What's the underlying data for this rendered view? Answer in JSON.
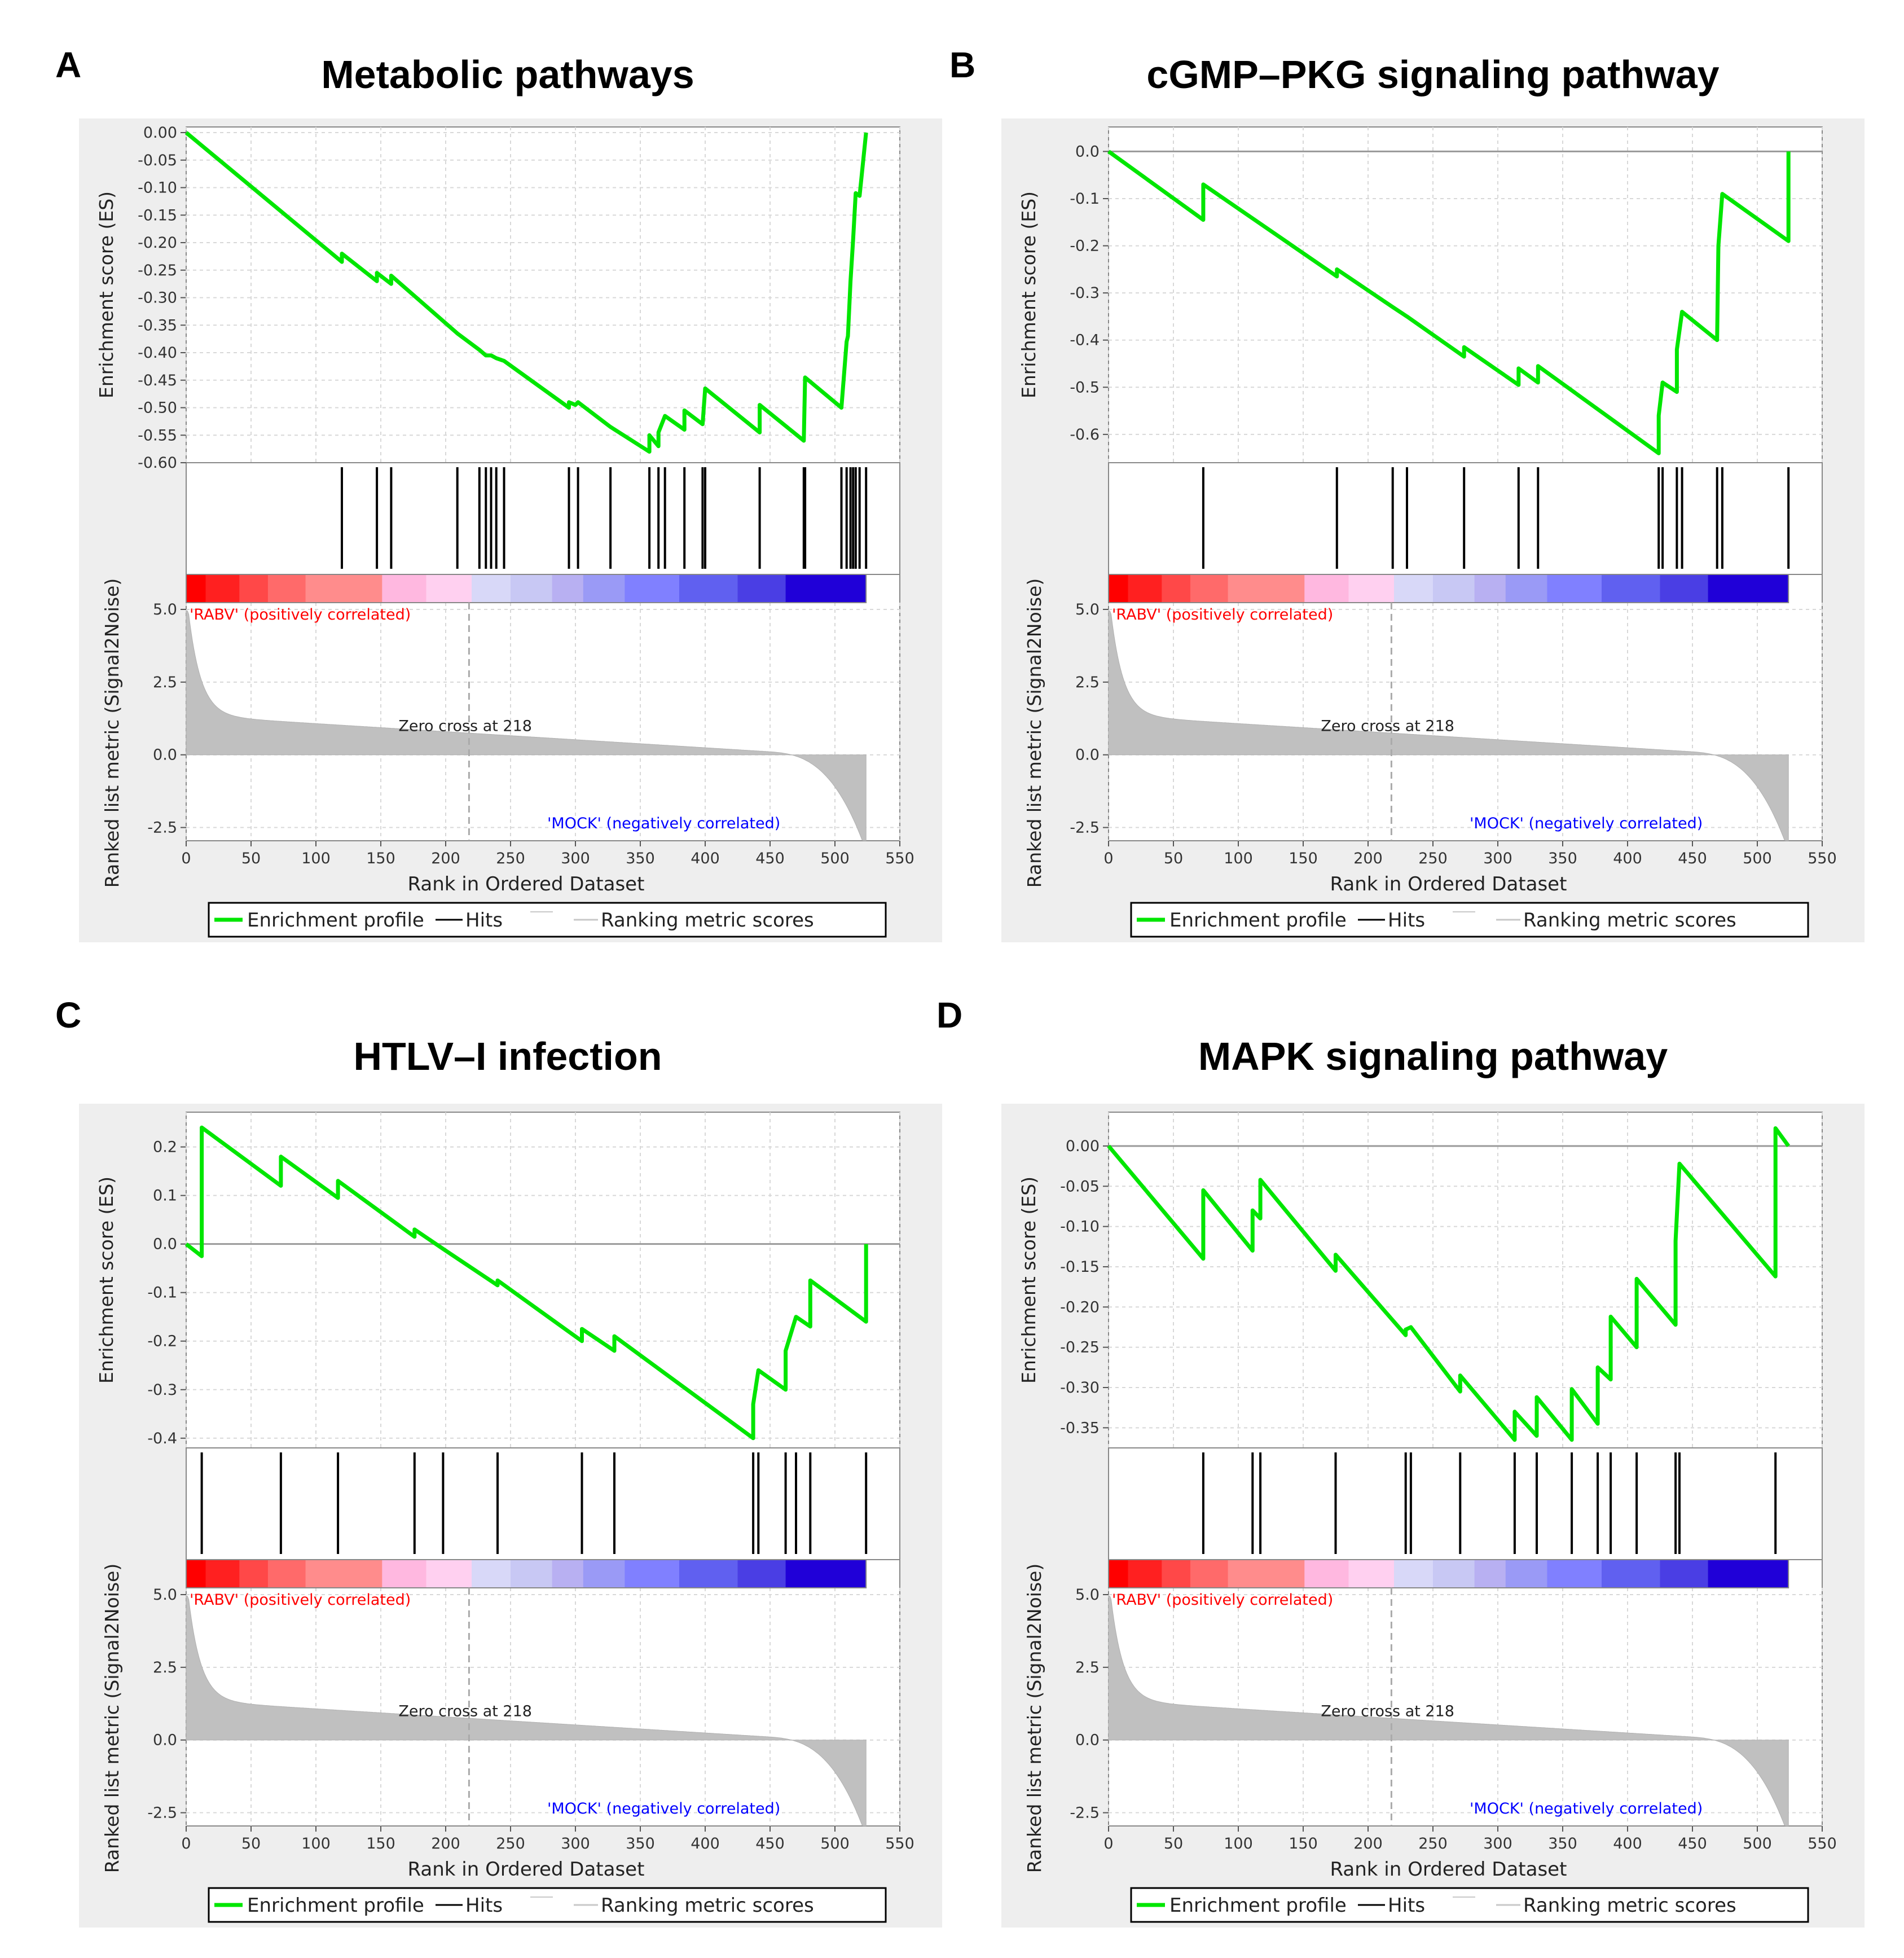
{
  "figure": {
    "common": {
      "es_ylabel": "Enrichment score (ES)",
      "metric_ylabel": "Ranked list metric (Signal2Noise)",
      "xlabel": "Rank in Ordered Dataset",
      "x_ticks": [
        0,
        50,
        100,
        150,
        200,
        250,
        300,
        350,
        400,
        450,
        500,
        550
      ],
      "metric_ticks": [
        "5.0",
        "2.5",
        "0.0",
        "-2.5"
      ],
      "pos_label": "'RABV' (positively correlated)",
      "neg_label": "'MOCK' (negatively correlated)",
      "zero_cross": "Zero cross at 218",
      "legend": {
        "profile": "Enrichment profile",
        "hits": "Hits",
        "metric": "Ranking metric scores"
      },
      "colors": {
        "profile": "#00e600",
        "pos": "#ff0000",
        "neg": "#0000ff",
        "bars": "#c0c0c0",
        "panel_bg": "#eeeeee"
      }
    }
  },
  "chart_data": [
    {
      "type": "line",
      "letter": "A",
      "title": "Metabolic pathways",
      "y_ticks": [
        "0.00",
        "-0.05",
        "-0.10",
        "-0.15",
        "-0.20",
        "-0.25",
        "-0.30",
        "-0.35",
        "-0.40",
        "-0.45",
        "-0.50",
        "-0.55",
        "-0.60"
      ],
      "ylim": [
        -0.6,
        0.0
      ],
      "xlim": [
        0,
        550
      ],
      "n": 524,
      "hits": [
        120,
        147,
        158,
        209,
        226,
        231,
        235,
        239,
        245,
        295,
        302,
        327,
        357,
        364,
        369,
        384,
        398,
        400,
        442,
        476,
        477,
        505,
        509,
        512,
        514,
        516,
        519,
        524
      ],
      "profile": [
        [
          0,
          0.0
        ],
        [
          120,
          -0.235
        ],
        [
          120,
          -0.22
        ],
        [
          147,
          -0.27
        ],
        [
          147,
          -0.255
        ],
        [
          158,
          -0.275
        ],
        [
          158,
          -0.26
        ],
        [
          209,
          -0.365
        ],
        [
          226,
          -0.395
        ],
        [
          231,
          -0.405
        ],
        [
          235,
          -0.405
        ],
        [
          239,
          -0.41
        ],
        [
          245,
          -0.415
        ],
        [
          295,
          -0.5
        ],
        [
          295,
          -0.49
        ],
        [
          300,
          -0.495
        ],
        [
          302,
          -0.49
        ],
        [
          327,
          -0.535
        ],
        [
          357,
          -0.58
        ],
        [
          357,
          -0.55
        ],
        [
          364,
          -0.57
        ],
        [
          364,
          -0.545
        ],
        [
          369,
          -0.515
        ],
        [
          384,
          -0.54
        ],
        [
          384,
          -0.505
        ],
        [
          398,
          -0.53
        ],
        [
          400,
          -0.465
        ],
        [
          442,
          -0.545
        ],
        [
          442,
          -0.495
        ],
        [
          476,
          -0.56
        ],
        [
          477,
          -0.445
        ],
        [
          505,
          -0.5
        ],
        [
          509,
          -0.38
        ],
        [
          510,
          -0.37
        ],
        [
          512,
          -0.27
        ],
        [
          514,
          -0.195
        ],
        [
          516,
          -0.11
        ],
        [
          519,
          -0.115
        ],
        [
          524,
          0.0
        ]
      ]
    },
    {
      "type": "line",
      "letter": "B",
      "title": "cGMP–PKG signaling pathway",
      "y_ticks": [
        "0.0",
        "-0.1",
        "-0.2",
        "-0.3",
        "-0.4",
        "-0.5",
        "-0.6"
      ],
      "ylim": [
        -0.66,
        0.04
      ],
      "xlim": [
        0,
        550
      ],
      "n": 524,
      "hits": [
        73,
        176,
        219,
        230,
        274,
        316,
        331,
        424,
        427,
        438,
        442,
        469,
        473,
        524
      ],
      "profile": [
        [
          0,
          0.0
        ],
        [
          73,
          -0.145
        ],
        [
          73,
          -0.07
        ],
        [
          176,
          -0.265
        ],
        [
          176,
          -0.25
        ],
        [
          219,
          -0.33
        ],
        [
          230,
          -0.35
        ],
        [
          274,
          -0.435
        ],
        [
          274,
          -0.415
        ],
        [
          316,
          -0.495
        ],
        [
          316,
          -0.46
        ],
        [
          331,
          -0.49
        ],
        [
          331,
          -0.455
        ],
        [
          424,
          -0.64
        ],
        [
          424,
          -0.56
        ],
        [
          427,
          -0.49
        ],
        [
          438,
          -0.51
        ],
        [
          438,
          -0.42
        ],
        [
          442,
          -0.34
        ],
        [
          469,
          -0.4
        ],
        [
          470,
          -0.2
        ],
        [
          473,
          -0.09
        ],
        [
          524,
          -0.19
        ],
        [
          524,
          0.0
        ]
      ]
    },
    {
      "type": "line",
      "letter": "C",
      "title": "HTLV–I infection",
      "y_ticks": [
        "0.2",
        "0.1",
        "0.0",
        "-0.1",
        "-0.2",
        "-0.3",
        "-0.4"
      ],
      "ylim": [
        -0.42,
        0.26
      ],
      "xlim": [
        0,
        550
      ],
      "n": 524,
      "hits": [
        12,
        73,
        117,
        176,
        198,
        240,
        305,
        330,
        437,
        441,
        462,
        470,
        481,
        524
      ],
      "profile": [
        [
          0,
          0.0
        ],
        [
          12,
          -0.025
        ],
        [
          12,
          0.24
        ],
        [
          73,
          0.12
        ],
        [
          73,
          0.18
        ],
        [
          117,
          0.095
        ],
        [
          117,
          0.13
        ],
        [
          176,
          0.015
        ],
        [
          176,
          0.03
        ],
        [
          198,
          -0.01
        ],
        [
          240,
          -0.085
        ],
        [
          240,
          -0.075
        ],
        [
          305,
          -0.2
        ],
        [
          305,
          -0.175
        ],
        [
          330,
          -0.22
        ],
        [
          330,
          -0.19
        ],
        [
          437,
          -0.4
        ],
        [
          437,
          -0.33
        ],
        [
          441,
          -0.26
        ],
        [
          462,
          -0.3
        ],
        [
          462,
          -0.22
        ],
        [
          470,
          -0.15
        ],
        [
          481,
          -0.17
        ],
        [
          481,
          -0.075
        ],
        [
          524,
          -0.16
        ],
        [
          524,
          0.0
        ]
      ]
    },
    {
      "type": "line",
      "letter": "D",
      "title": "MAPK signaling pathway",
      "y_ticks": [
        "0.00",
        "-0.05",
        "-0.10",
        "-0.15",
        "-0.20",
        "-0.25",
        "-0.30",
        "-0.35"
      ],
      "ylim": [
        -0.375,
        0.035
      ],
      "xlim": [
        0,
        550
      ],
      "n": 524,
      "hits": [
        73,
        111,
        117,
        175,
        229,
        233,
        271,
        313,
        330,
        357,
        377,
        387,
        407,
        437,
        440,
        514
      ],
      "profile": [
        [
          0,
          0.0
        ],
        [
          73,
          -0.14
        ],
        [
          73,
          -0.055
        ],
        [
          111,
          -0.13
        ],
        [
          111,
          -0.08
        ],
        [
          117,
          -0.09
        ],
        [
          117,
          -0.042
        ],
        [
          175,
          -0.155
        ],
        [
          175,
          -0.135
        ],
        [
          229,
          -0.235
        ],
        [
          229,
          -0.228
        ],
        [
          233,
          -0.225
        ],
        [
          271,
          -0.305
        ],
        [
          271,
          -0.285
        ],
        [
          313,
          -0.365
        ],
        [
          313,
          -0.33
        ],
        [
          330,
          -0.36
        ],
        [
          330,
          -0.312
        ],
        [
          357,
          -0.365
        ],
        [
          357,
          -0.302
        ],
        [
          377,
          -0.345
        ],
        [
          377,
          -0.275
        ],
        [
          387,
          -0.29
        ],
        [
          387,
          -0.212
        ],
        [
          407,
          -0.25
        ],
        [
          407,
          -0.165
        ],
        [
          437,
          -0.222
        ],
        [
          437,
          -0.118
        ],
        [
          440,
          -0.022
        ],
        [
          514,
          -0.162
        ],
        [
          514,
          0.022
        ],
        [
          524,
          0.0
        ]
      ]
    }
  ]
}
